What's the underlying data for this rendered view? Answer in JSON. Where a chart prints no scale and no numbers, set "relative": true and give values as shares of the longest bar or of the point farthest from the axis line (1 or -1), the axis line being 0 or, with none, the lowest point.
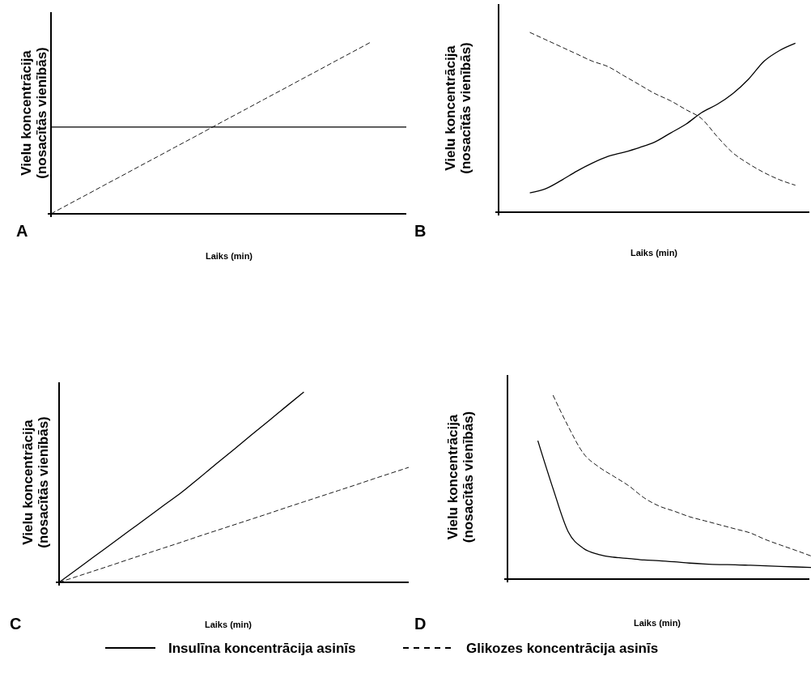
{
  "chart_data": [
    {
      "type": "line",
      "title": "A",
      "xlabel": "Laiks (min)",
      "ylabel": "Vielu koncentrācija\n(nosacītās vienībās)",
      "relative": true,
      "legend": "bottom",
      "categories": [
        null,
        null,
        null,
        null,
        null,
        null,
        null,
        null,
        null,
        null,
        null,
        null,
        null,
        null,
        null,
        null,
        null,
        null,
        null,
        null,
        null
      ],
      "series": [
        {
          "name": "Insulīna koncentrācija asinīs",
          "color": "#000000",
          "line_style": "solid",
          "values": [
            0.505,
            0.505,
            0.505,
            0.505,
            0.505,
            0.505,
            0.505,
            0.505,
            0.505,
            0.505,
            0.505,
            0.505,
            0.505,
            0.505,
            0.505,
            0.505,
            0.505,
            0.505,
            0.505,
            0.505,
            0.505
          ]
        },
        {
          "name": "Glikozes koncentrācija asinīs",
          "color": "#000000",
          "line_style": "dashed",
          "values": [
            0,
            0.056,
            0.111,
            0.167,
            0.222,
            0.278,
            0.333,
            0.389,
            0.444,
            0.5,
            0.556,
            0.611,
            0.667,
            0.722,
            0.778,
            0.833,
            0.889,
            0.944,
            1.0,
            null,
            null
          ]
        }
      ]
    },
    {
      "type": "line",
      "title": "B",
      "xlabel": "Laiks (min)",
      "ylabel": "Vielu koncentrācija\n(nosacītās vienībās)",
      "relative": true,
      "categories": [
        null,
        null,
        null,
        null,
        null,
        null,
        null,
        null,
        null,
        null,
        null,
        null,
        null,
        null,
        null,
        null,
        null,
        null,
        null,
        null,
        null
      ],
      "series": [
        {
          "color": "#000000",
          "line_style": "solid",
          "values": [
            null,
            null,
            0.108,
            0.13,
            0.176,
            0.228,
            0.273,
            0.31,
            0.333,
            0.359,
            0.39,
            0.44,
            0.49,
            0.554,
            0.6,
            0.66,
            0.74,
            0.84,
            0.9,
            0.94,
            null
          ]
        },
        {
          "color": "#000000",
          "line_style": "dashed",
          "values": [
            null,
            null,
            1.0,
            0.96,
            0.92,
            0.88,
            0.84,
            0.81,
            0.76,
            0.71,
            0.66,
            0.62,
            0.57,
            0.52,
            0.42,
            0.33,
            0.27,
            0.22,
            0.18,
            0.15,
            null
          ]
        }
      ]
    },
    {
      "type": "line",
      "title": "C",
      "xlabel": "Laiks (min)",
      "ylabel": "Vielu koncentrācija\n(nosacītās vienībās)",
      "relative": true,
      "categories": [
        null,
        null,
        null,
        null,
        null,
        null,
        null,
        null,
        null,
        null,
        null,
        null,
        null,
        null,
        null,
        null,
        null,
        null,
        null,
        null,
        null
      ],
      "series": [
        {
          "color": "#000000",
          "line_style": "solid",
          "values": [
            0,
            0.067,
            0.135,
            0.202,
            0.27,
            0.337,
            0.405,
            0.472,
            0.547,
            0.623,
            0.698,
            0.774,
            0.849,
            0.925,
            1.0,
            null,
            null,
            null,
            null,
            null,
            null
          ]
        },
        {
          "color": "#000000",
          "line_style": "dashed",
          "values": [
            0,
            0.03,
            0.06,
            0.09,
            0.121,
            0.151,
            0.181,
            0.211,
            0.242,
            0.272,
            0.302,
            0.332,
            0.362,
            0.393,
            0.423,
            0.453,
            0.483,
            0.513,
            0.544,
            0.574,
            0.604
          ]
        }
      ]
    },
    {
      "type": "line",
      "title": "D",
      "xlabel": "Laiks (min)",
      "ylabel": "Vielu koncentrācija\n(nosacītās vienībās)",
      "relative": true,
      "categories": [
        null,
        null,
        null,
        null,
        null,
        null,
        null,
        null,
        null,
        null,
        null,
        null,
        null,
        null,
        null,
        null,
        null,
        null,
        null,
        null,
        null
      ],
      "series": [
        {
          "color": "#000000",
          "line_style": "solid",
          "values": [
            null,
            null,
            0.753,
            0.493,
            0.258,
            0.167,
            0.134,
            0.119,
            0.112,
            0.104,
            0.1,
            0.094,
            0.087,
            0.082,
            0.079,
            0.078,
            0.075,
            0.072,
            0.069,
            0.066,
            0.063
          ]
        },
        {
          "color": "#000000",
          "line_style": "dashed",
          "values": [
            null,
            null,
            null,
            1.0,
            0.831,
            0.684,
            0.611,
            0.559,
            0.507,
            0.442,
            0.397,
            0.369,
            0.339,
            0.317,
            0.295,
            0.273,
            0.251,
            0.215,
            0.185,
            0.156,
            0.126
          ]
        }
      ]
    }
  ]
}
